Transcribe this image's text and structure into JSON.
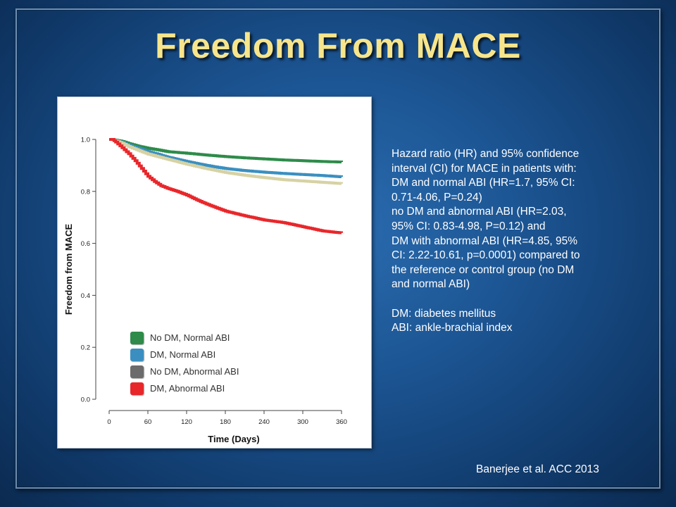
{
  "title": "Freedom From MACE",
  "notes": [
    "Hazard ratio (HR) and 95% confidence",
    "interval (CI) for MACE in patients with:",
    "DM and normal ABI (HR=1.7, 95% CI:",
    "0.71-4.06, P=0.24)",
    "no DM and abnormal ABI (HR=2.03,",
    "95% CI: 0.83-4.98, P=0.12) and",
    "DM with abnormal ABI (HR=4.85, 95%",
    "CI: 2.22-10.61, p=0.0001) compared to",
    "the reference or control group (no DM",
    "and normal ABI)"
  ],
  "definitions": [
    "DM: diabetes mellitus",
    "ABI: ankle-brachial index"
  ],
  "citation": "Banerjee et al.  ACC 2013",
  "chart_data": {
    "type": "line",
    "xlabel": "Time (Days)",
    "ylabel": "Freedom from MACE",
    "xlim": [
      0,
      360
    ],
    "ylim": [
      0.0,
      1.0
    ],
    "xticks": [
      0,
      60,
      120,
      180,
      240,
      300,
      360
    ],
    "yticks": [
      0.0,
      0.2,
      0.4,
      0.6,
      0.8,
      1.0
    ],
    "xtick_labels": [
      "0",
      "60",
      "120",
      "180",
      "240",
      "300",
      "360"
    ],
    "ytick_labels": [
      "0.0",
      "0.2",
      "0.4",
      "0.6",
      "0.8",
      "1.0"
    ],
    "grid": false,
    "legend_position": "bottom-left",
    "series": [
      {
        "name": "No DM, Normal ABI",
        "color": "#2e8b4a",
        "x": [
          0,
          5,
          10,
          20,
          30,
          45,
          60,
          75,
          90,
          120,
          150,
          180,
          210,
          240,
          270,
          300,
          330,
          360
        ],
        "y": [
          1.0,
          1.0,
          0.997,
          0.992,
          0.984,
          0.974,
          0.966,
          0.96,
          0.953,
          0.947,
          0.94,
          0.934,
          0.929,
          0.925,
          0.921,
          0.918,
          0.915,
          0.913
        ]
      },
      {
        "name": "DM, Normal ABI",
        "color": "#3a8fc0",
        "x": [
          0,
          5,
          10,
          20,
          30,
          45,
          60,
          75,
          90,
          120,
          150,
          180,
          210,
          240,
          270,
          300,
          330,
          360
        ],
        "y": [
          1.0,
          1.0,
          0.995,
          0.988,
          0.978,
          0.966,
          0.953,
          0.943,
          0.932,
          0.915,
          0.9,
          0.888,
          0.88,
          0.874,
          0.869,
          0.865,
          0.861,
          0.856
        ]
      },
      {
        "name": "No DM, Abnormal ABI",
        "color": "#d6d2a4",
        "x": [
          0,
          5,
          10,
          20,
          30,
          45,
          60,
          75,
          90,
          120,
          150,
          180,
          210,
          240,
          270,
          300,
          330,
          360
        ],
        "y": [
          1.0,
          1.0,
          0.994,
          0.985,
          0.973,
          0.958,
          0.944,
          0.934,
          0.924,
          0.905,
          0.888,
          0.873,
          0.862,
          0.853,
          0.845,
          0.84,
          0.835,
          0.83
        ]
      },
      {
        "name": "DM, Abnormal ABI",
        "color": "#e8272b",
        "x": [
          0,
          5,
          10,
          20,
          30,
          40,
          50,
          60,
          70,
          80,
          90,
          105,
          120,
          135,
          150,
          165,
          180,
          210,
          240,
          270,
          300,
          330,
          360
        ],
        "y": [
          1.0,
          1.0,
          0.99,
          0.968,
          0.945,
          0.918,
          0.888,
          0.858,
          0.838,
          0.822,
          0.812,
          0.8,
          0.786,
          0.768,
          0.752,
          0.738,
          0.724,
          0.706,
          0.69,
          0.68,
          0.664,
          0.648,
          0.64
        ]
      }
    ],
    "legend_swatch_colors": [
      "#2e8b4a",
      "#3a8fc0",
      "#6b6b6b",
      "#e8272b"
    ]
  }
}
